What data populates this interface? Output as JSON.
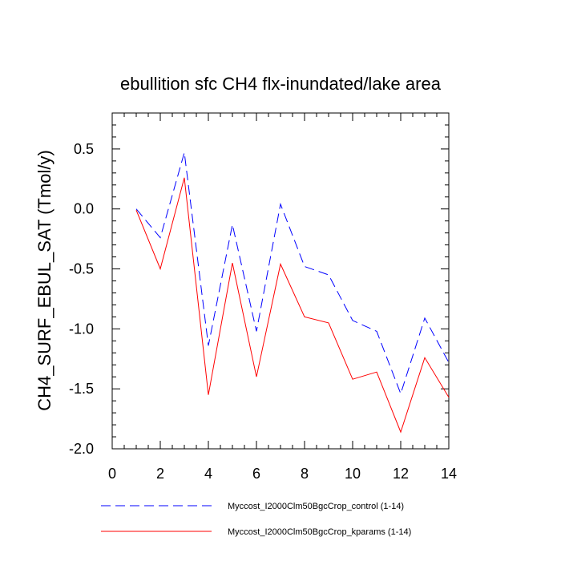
{
  "chart_data": {
    "type": "line",
    "title": "ebullition sfc CH4 flx-inundated/lake area",
    "ylabel": "CH4_SURF_EBUL_SAT  (Tmol/y)",
    "xlabel": "",
    "xlim": [
      0,
      14
    ],
    "ylim": [
      -2.0,
      0.8
    ],
    "xticks": [
      0,
      2,
      4,
      6,
      8,
      10,
      12,
      14
    ],
    "xtick_labels": [
      "0",
      "2",
      "4",
      "6",
      "8",
      "10",
      "12",
      "14"
    ],
    "yticks": [
      -2.0,
      -1.5,
      -1.0,
      -0.5,
      0.0,
      0.5
    ],
    "ytick_labels": [
      "-2.0",
      "-1.5",
      "-1.0",
      "-0.5",
      "0.0",
      "0.5"
    ],
    "grid": false,
    "legend_position": "bottom",
    "x": [
      1,
      2,
      3,
      4,
      5,
      6,
      7,
      8,
      9,
      10,
      11,
      12,
      13,
      14
    ],
    "series": [
      {
        "name": "Myccost_I2000Clm50BgcCrop_control (1-14)",
        "color": "#0000ff",
        "dash": "dashed",
        "values": [
          0.0,
          -0.24,
          0.47,
          -1.14,
          -0.13,
          -1.02,
          0.04,
          -0.48,
          -0.55,
          -0.93,
          -1.02,
          -1.54,
          -0.91,
          -1.28
        ]
      },
      {
        "name": "Myccost_I2000Clm50BgcCrop_kparams (1-14)",
        "color": "#ff0000",
        "dash": "solid",
        "values": [
          -0.01,
          -0.5,
          0.26,
          -1.55,
          -0.45,
          -1.4,
          -0.46,
          -0.9,
          -0.95,
          -1.42,
          -1.36,
          -1.86,
          -1.24,
          -1.57
        ]
      }
    ]
  }
}
